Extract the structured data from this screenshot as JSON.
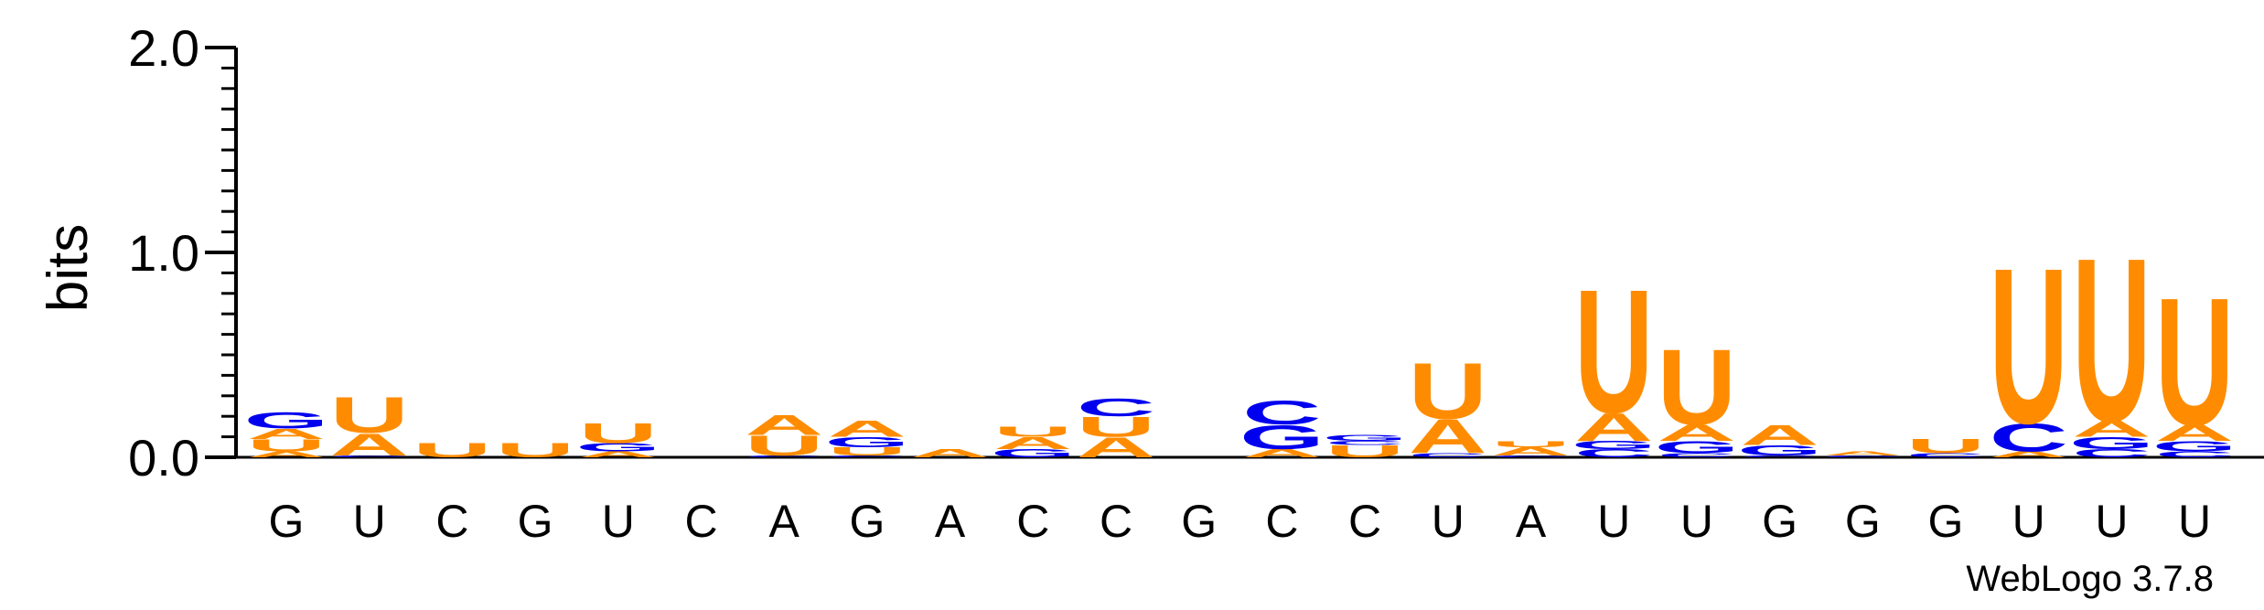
{
  "chart_data": {
    "type": "sequence-logo",
    "ylabel": "bits",
    "ylim": [
      0,
      2.0
    ],
    "y_ticks": [
      "0.0",
      "1.0",
      "2.0"
    ],
    "colors": {
      "A": "#ff8c00",
      "U": "#ff8c00",
      "C": "#0000ee",
      "G": "#0000ee"
    },
    "positions": [
      {
        "label": "G",
        "letters": [
          {
            "l": "A",
            "h": 0.03
          },
          {
            "l": "U",
            "h": 0.06
          },
          {
            "l": "A",
            "h": 0.05
          },
          {
            "l": "G",
            "h": 0.08
          }
        ]
      },
      {
        "label": "U",
        "letters": [
          {
            "l": "C",
            "h": 0.01
          },
          {
            "l": "A",
            "h": 0.11
          },
          {
            "l": "U",
            "h": 0.18
          }
        ]
      },
      {
        "label": "C",
        "letters": [
          {
            "l": "U",
            "h": 0.07
          }
        ]
      },
      {
        "label": "G",
        "letters": [
          {
            "l": "U",
            "h": 0.07
          }
        ]
      },
      {
        "label": "U",
        "letters": [
          {
            "l": "A",
            "h": 0.03
          },
          {
            "l": "G",
            "h": 0.04
          },
          {
            "l": "U",
            "h": 0.1
          }
        ]
      },
      {
        "label": "C",
        "letters": []
      },
      {
        "label": "A",
        "letters": [
          {
            "l": "C",
            "h": 0.01
          },
          {
            "l": "U",
            "h": 0.1
          },
          {
            "l": "A",
            "h": 0.1
          }
        ]
      },
      {
        "label": "G",
        "letters": [
          {
            "l": "C",
            "h": 0.01
          },
          {
            "l": "U",
            "h": 0.04
          },
          {
            "l": "G",
            "h": 0.05
          },
          {
            "l": "A",
            "h": 0.08
          }
        ]
      },
      {
        "label": "A",
        "letters": [
          {
            "l": "A",
            "h": 0.04
          }
        ]
      },
      {
        "label": "C",
        "letters": [
          {
            "l": "G",
            "h": 0.04
          },
          {
            "l": "A",
            "h": 0.06
          },
          {
            "l": "U",
            "h": 0.05
          }
        ]
      },
      {
        "label": "C",
        "letters": [
          {
            "l": "A",
            "h": 0.1
          },
          {
            "l": "U",
            "h": 0.1
          },
          {
            "l": "C",
            "h": 0.09
          }
        ]
      },
      {
        "label": "G",
        "letters": []
      },
      {
        "label": "C",
        "letters": [
          {
            "l": "A",
            "h": 0.04
          },
          {
            "l": "G",
            "h": 0.12
          },
          {
            "l": "C",
            "h": 0.12
          }
        ]
      },
      {
        "label": "C",
        "letters": [
          {
            "l": "U",
            "h": 0.06
          },
          {
            "l": "C",
            "h": 0.02
          },
          {
            "l": "G",
            "h": 0.03
          }
        ]
      },
      {
        "label": "U",
        "letters": [
          {
            "l": "C",
            "h": 0.02
          },
          {
            "l": "A",
            "h": 0.17
          },
          {
            "l": "U",
            "h": 0.28
          }
        ]
      },
      {
        "label": "A",
        "letters": [
          {
            "l": "C",
            "h": 0.01
          },
          {
            "l": "A",
            "h": 0.04
          },
          {
            "l": "U",
            "h": 0.03
          }
        ]
      },
      {
        "label": "U",
        "letters": [
          {
            "l": "C",
            "h": 0.04
          },
          {
            "l": "G",
            "h": 0.04
          },
          {
            "l": "A",
            "h": 0.14
          },
          {
            "l": "U",
            "h": 0.62
          }
        ]
      },
      {
        "label": "U",
        "letters": [
          {
            "l": "C",
            "h": 0.02
          },
          {
            "l": "G",
            "h": 0.06
          },
          {
            "l": "A",
            "h": 0.08
          },
          {
            "l": "U",
            "h": 0.38
          }
        ]
      },
      {
        "label": "G",
        "letters": [
          {
            "l": "C",
            "h": 0.01
          },
          {
            "l": "G",
            "h": 0.05
          },
          {
            "l": "A",
            "h": 0.1
          }
        ]
      },
      {
        "label": "G",
        "letters": [
          {
            "l": "C",
            "h": 0.01
          },
          {
            "l": "A",
            "h": 0.02
          }
        ]
      },
      {
        "label": "G",
        "letters": [
          {
            "l": "C",
            "h": 0.02
          },
          {
            "l": "U",
            "h": 0.07
          }
        ]
      },
      {
        "label": "U",
        "letters": [
          {
            "l": "A",
            "h": 0.03
          },
          {
            "l": "C",
            "h": 0.14
          },
          {
            "l": "U",
            "h": 0.78
          }
        ]
      },
      {
        "label": "U",
        "letters": [
          {
            "l": "C",
            "h": 0.04
          },
          {
            "l": "G",
            "h": 0.06
          },
          {
            "l": "A",
            "h": 0.08
          },
          {
            "l": "U",
            "h": 0.82
          }
        ]
      },
      {
        "label": "U",
        "letters": [
          {
            "l": "C",
            "h": 0.03
          },
          {
            "l": "G",
            "h": 0.05
          },
          {
            "l": "A",
            "h": 0.08
          },
          {
            "l": "U",
            "h": 0.64
          }
        ]
      }
    ]
  },
  "credit": "WebLogo 3.7.8"
}
